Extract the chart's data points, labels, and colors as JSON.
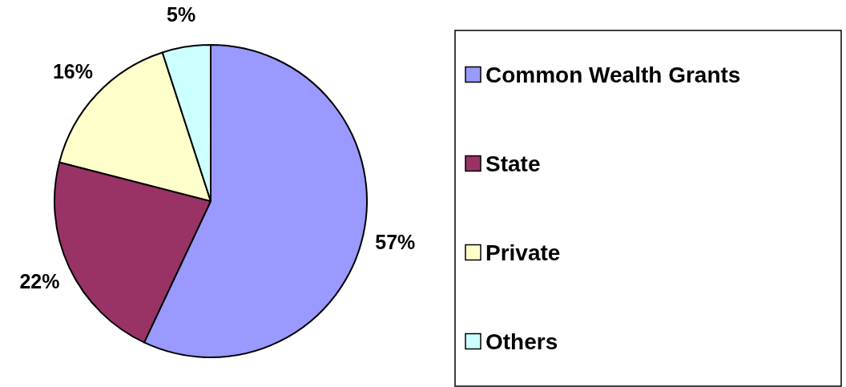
{
  "chart_data": {
    "type": "pie",
    "categories": [
      "Common Wealth Grants",
      "State",
      "Private",
      "Others"
    ],
    "values": [
      57,
      22,
      16,
      5
    ],
    "colors": [
      "#9999ff",
      "#993366",
      "#ffffcc",
      "#ccffff"
    ],
    "value_labels": [
      "57%",
      "22%",
      "16%",
      "5%"
    ],
    "legend": "right"
  }
}
